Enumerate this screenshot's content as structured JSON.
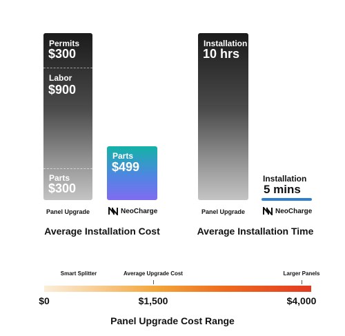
{
  "chart_data": [
    {
      "type": "bar",
      "stacked": true,
      "title": "Average Installation Cost",
      "categories": [
        "Panel Upgrade",
        "NeoCharge"
      ],
      "series": [
        {
          "category": "Panel Upgrade",
          "segments": [
            {
              "label": "Permits",
              "display": "$300",
              "value": 300
            },
            {
              "label": "Labor",
              "display": "$900",
              "value": 900
            },
            {
              "label": "Parts",
              "display": "$300",
              "value": 300
            }
          ]
        },
        {
          "category": "NeoCharge",
          "segments": [
            {
              "label": "Parts",
              "display": "$499",
              "value": 499
            }
          ]
        }
      ]
    },
    {
      "type": "bar",
      "title": "Average Installation Time",
      "categories": [
        "Panel Upgrade",
        "NeoCharge"
      ],
      "series": [
        {
          "category": "Panel Upgrade",
          "label": "Installation",
          "display": "10 hrs",
          "value_minutes": 600
        },
        {
          "category": "NeoCharge",
          "label": "Installation",
          "display": "5 mins",
          "value_minutes": 5
        }
      ]
    },
    {
      "type": "range",
      "title": "Panel Upgrade Cost Range",
      "range": [
        0,
        4000
      ],
      "range_labels": [
        "$0",
        "$1,500",
        "$4,000"
      ],
      "range_values": [
        0,
        1500,
        4000
      ],
      "markers": [
        {
          "label": "Smart Splitter",
          "value": 500
        },
        {
          "label": "Average Upgrade Cost",
          "value": 1500
        },
        {
          "label": "Larger Panels",
          "value": 4000
        }
      ],
      "gradient_colors": [
        "#fbeedb",
        "#f3a63a",
        "#e23a22"
      ]
    }
  ],
  "labels": {
    "panel_upgrade": "Panel Upgrade",
    "neocharge": "NeoCharge"
  },
  "colors": {
    "gray_top": "#1b1b1b",
    "neo_teal": "#13b3a6",
    "neo_purple": "#7f6cf0",
    "neo_blue": "#2f7fd0"
  }
}
